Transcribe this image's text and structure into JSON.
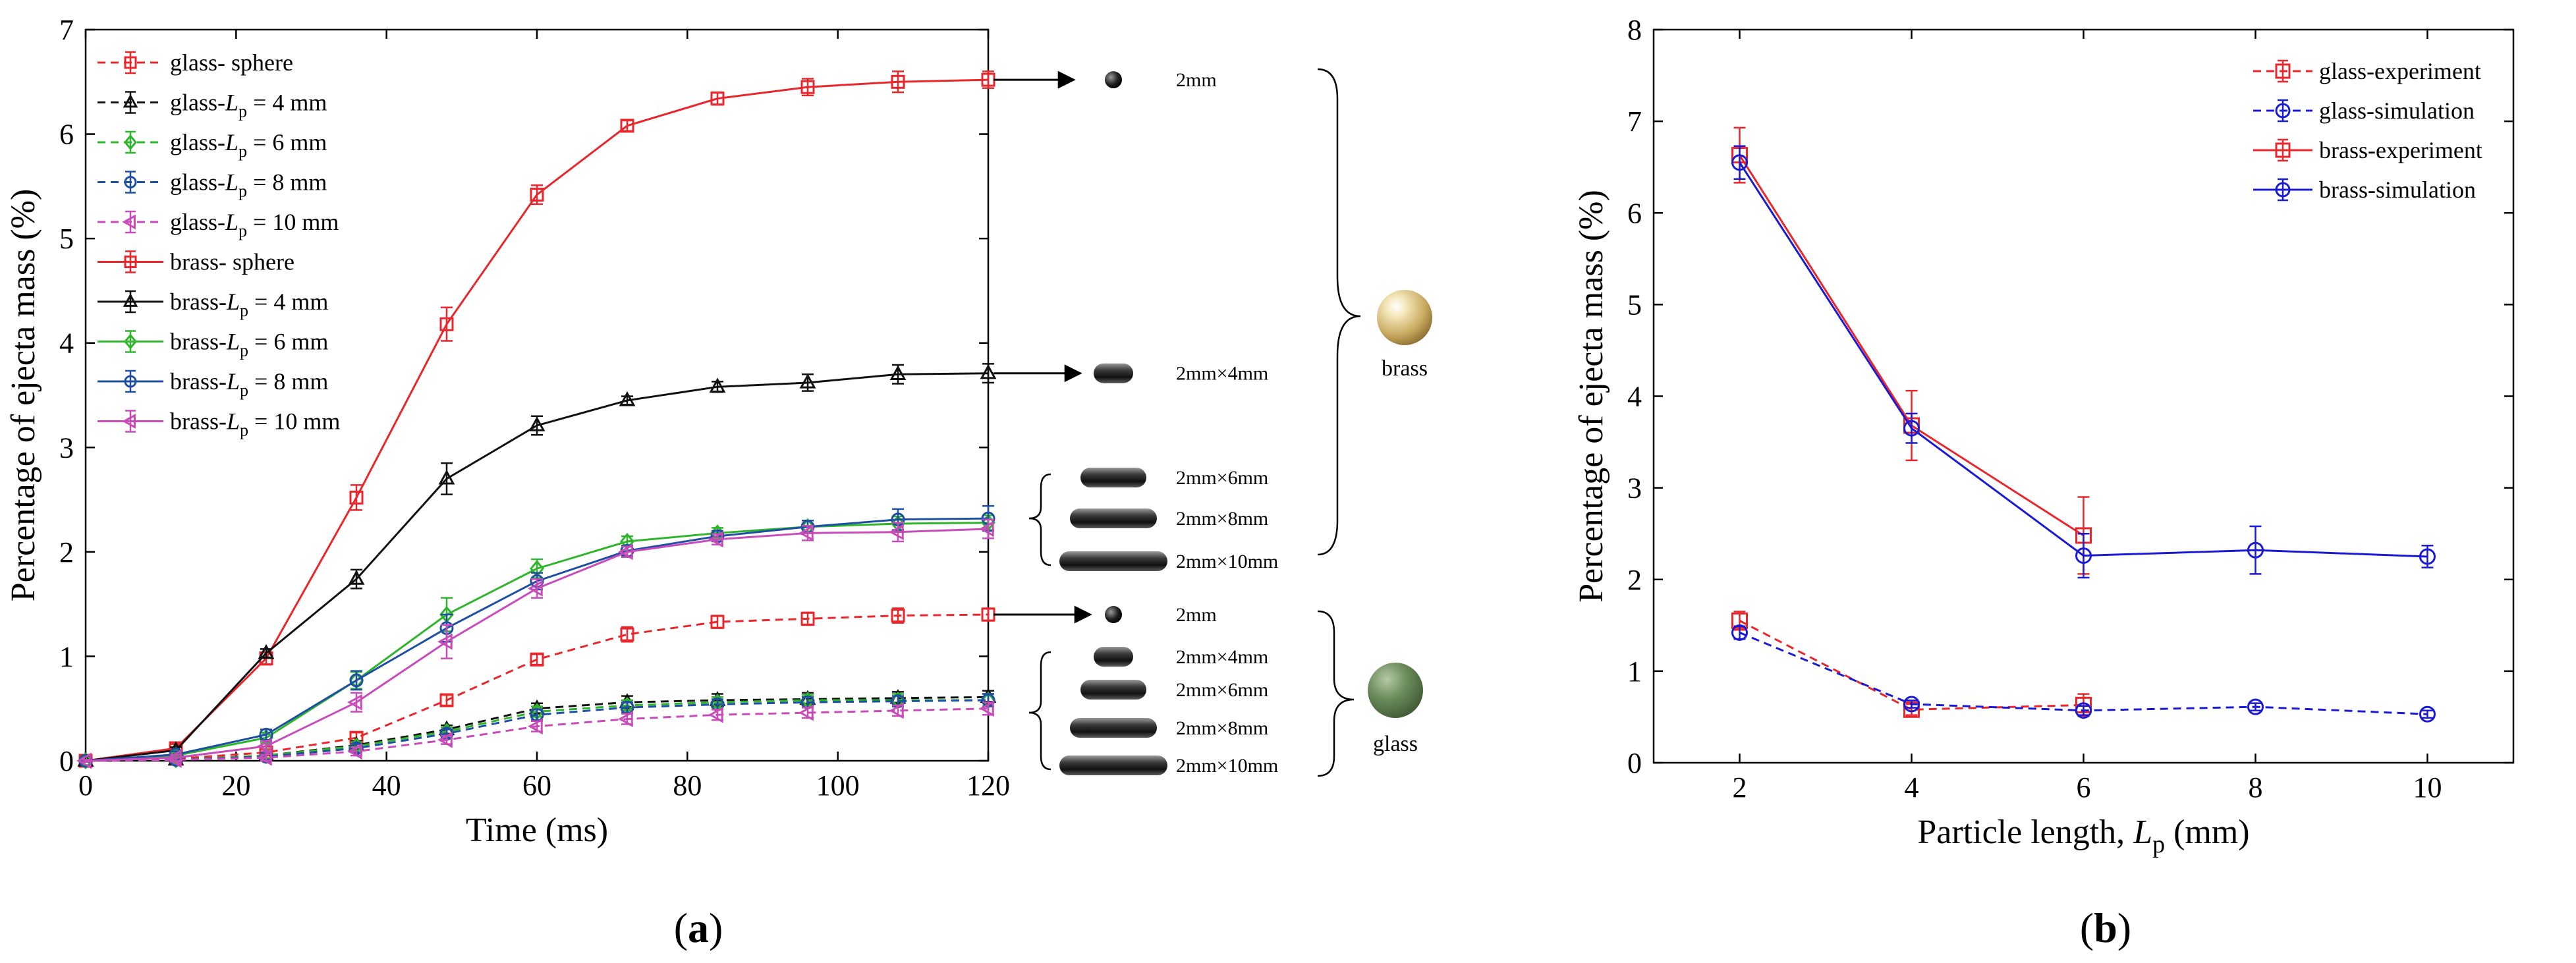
{
  "chart_data": [
    {
      "type": "line",
      "panel_label": "a",
      "xlabel": "Time (ms)",
      "ylabel": "Percentage of ejecta mass (%)",
      "xlim": [
        0,
        120
      ],
      "ylim": [
        0,
        7
      ],
      "xticks": [
        0,
        20,
        40,
        60,
        80,
        100,
        120
      ],
      "yticks": [
        0,
        1,
        2,
        3,
        4,
        5,
        6,
        7
      ],
      "x": [
        0,
        12,
        24,
        36,
        48,
        60,
        72,
        84,
        96,
        108,
        120
      ],
      "legend_position": "top-left",
      "series": [
        {
          "name": "glass- sphere",
          "sub": "",
          "suffix": "",
          "color": "#e8262b",
          "dash": true,
          "marker": "square",
          "values": [
            0,
            0.02,
            0.08,
            0.22,
            0.58,
            0.97,
            1.21,
            1.33,
            1.36,
            1.39,
            1.4
          ],
          "errors": [
            0.01,
            0.02,
            0.03,
            0.05,
            0.05,
            0.05,
            0.07,
            0.06,
            0.06,
            0.07,
            0.06
          ]
        },
        {
          "name": "glass-L",
          "sub": "p",
          "suffix": "=  4 mm",
          "color": "#111111",
          "dash": true,
          "marker": "triangle",
          "values": [
            0,
            0.01,
            0.05,
            0.15,
            0.3,
            0.5,
            0.56,
            0.58,
            0.59,
            0.6,
            0.61
          ],
          "errors": [
            0.01,
            0.02,
            0.03,
            0.04,
            0.04,
            0.05,
            0.06,
            0.06,
            0.06,
            0.06,
            0.06
          ]
        },
        {
          "name": "glass-L",
          "sub": "p",
          "suffix": "=  6 mm",
          "color": "#2fb52b",
          "dash": true,
          "marker": "diamond",
          "values": [
            0,
            0.01,
            0.05,
            0.14,
            0.28,
            0.47,
            0.53,
            0.56,
            0.58,
            0.58,
            0.58
          ],
          "errors": [
            0.01,
            0.02,
            0.03,
            0.04,
            0.04,
            0.05,
            0.05,
            0.05,
            0.05,
            0.06,
            0.06
          ]
        },
        {
          "name": "glass-L",
          "sub": "p",
          "suffix": "=  8 mm",
          "color": "#1f4fa3",
          "dash": true,
          "marker": "circle",
          "values": [
            0,
            0.01,
            0.04,
            0.12,
            0.26,
            0.44,
            0.51,
            0.54,
            0.56,
            0.57,
            0.58
          ],
          "errors": [
            0.01,
            0.02,
            0.03,
            0.04,
            0.04,
            0.05,
            0.05,
            0.05,
            0.05,
            0.05,
            0.06
          ]
        },
        {
          "name": "glass-L",
          "sub": "p",
          "suffix": "= 10 mm",
          "color": "#c74bb8",
          "dash": true,
          "marker": "ltriangle",
          "values": [
            0,
            0.01,
            0.03,
            0.09,
            0.2,
            0.33,
            0.4,
            0.44,
            0.46,
            0.48,
            0.5
          ],
          "errors": [
            0.01,
            0.02,
            0.03,
            0.04,
            0.04,
            0.05,
            0.05,
            0.05,
            0.05,
            0.05,
            0.06
          ]
        },
        {
          "name": "brass- sphere",
          "sub": "",
          "suffix": "",
          "color": "#e8262b",
          "dash": false,
          "marker": "square",
          "values": [
            0,
            0.12,
            0.98,
            2.52,
            4.18,
            5.42,
            6.08,
            6.34,
            6.45,
            6.5,
            6.52
          ],
          "errors": [
            0.01,
            0.04,
            0.06,
            0.12,
            0.16,
            0.09,
            0.05,
            0.06,
            0.08,
            0.1,
            0.08
          ]
        },
        {
          "name": "brass-L",
          "sub": "p",
          "suffix": "=  4 mm",
          "color": "#111111",
          "dash": false,
          "marker": "triangle",
          "values": [
            0,
            0.1,
            1.03,
            1.74,
            2.7,
            3.21,
            3.45,
            3.58,
            3.62,
            3.7,
            3.71
          ],
          "errors": [
            0.01,
            0.03,
            0.04,
            0.09,
            0.15,
            0.09,
            0.04,
            0.05,
            0.08,
            0.09,
            0.09
          ]
        },
        {
          "name": "brass-L",
          "sub": "p",
          "suffix": "=  6 mm",
          "color": "#2fb52b",
          "dash": false,
          "marker": "diamond",
          "values": [
            0,
            0.05,
            0.22,
            0.77,
            1.4,
            1.84,
            2.1,
            2.18,
            2.24,
            2.27,
            2.28
          ],
          "errors": [
            0.01,
            0.03,
            0.05,
            0.08,
            0.16,
            0.09,
            0.05,
            0.05,
            0.06,
            0.07,
            0.07
          ]
        },
        {
          "name": "brass-L",
          "sub": "p",
          "suffix": "=  8 mm",
          "color": "#1f4fa3",
          "dash": false,
          "marker": "circle",
          "values": [
            0,
            0.06,
            0.25,
            0.77,
            1.27,
            1.72,
            2.01,
            2.15,
            2.24,
            2.31,
            2.32
          ],
          "errors": [
            0.01,
            0.03,
            0.05,
            0.09,
            0.13,
            0.08,
            0.05,
            0.05,
            0.06,
            0.1,
            0.12
          ]
        },
        {
          "name": "brass-L",
          "sub": "p",
          "suffix": "= 10 mm",
          "color": "#c74bb8",
          "dash": false,
          "marker": "ltriangle",
          "values": [
            0,
            0.03,
            0.14,
            0.56,
            1.14,
            1.65,
            2.0,
            2.12,
            2.18,
            2.19,
            2.22
          ],
          "errors": [
            0.01,
            0.03,
            0.05,
            0.09,
            0.16,
            0.09,
            0.05,
            0.05,
            0.07,
            0.09,
            0.09
          ]
        }
      ],
      "annotations": {
        "brass_sizes": [
          "2mm",
          "2mm×4mm",
          "2mm×6mm",
          "2mm×8mm",
          "2mm×10mm"
        ],
        "glass_sizes": [
          "2mm",
          "2mm×4mm",
          "2mm×6mm",
          "2mm×8mm",
          "2mm×10mm"
        ],
        "brass_label": "brass",
        "glass_label": "glass"
      }
    },
    {
      "type": "line",
      "panel_label": "b",
      "xlabel": "Particle length, ",
      "xlabel_var": "L",
      "xlabel_sub": "p",
      "xlabel_unit": " (mm)",
      "ylabel": "Percentage of ejecta mass (%)",
      "xlim": [
        1,
        11
      ],
      "ylim": [
        0,
        8
      ],
      "xticks": [
        2,
        4,
        6,
        8,
        10
      ],
      "yticks": [
        0,
        1,
        2,
        3,
        4,
        5,
        6,
        7,
        8
      ],
      "legend_position": "top-right",
      "series": [
        {
          "name": "glass-experiment",
          "color": "#e8262b",
          "dash": true,
          "marker": "square",
          "x": [
            2,
            4,
            6
          ],
          "values": [
            1.55,
            0.58,
            0.63
          ],
          "errors": [
            0.1,
            0.06,
            0.12
          ]
        },
        {
          "name": "glass-simulation",
          "color": "#1a1ad6",
          "dash": true,
          "marker": "circle",
          "x": [
            2,
            4,
            6,
            8,
            10
          ],
          "values": [
            1.42,
            0.64,
            0.57,
            0.61,
            0.53
          ],
          "errors": [
            0.07,
            0.04,
            0.05,
            0.04,
            0.04
          ]
        },
        {
          "name": "brass-experiment",
          "color": "#e8262b",
          "dash": false,
          "marker": "square",
          "x": [
            2,
            4,
            6
          ],
          "values": [
            6.63,
            3.68,
            2.48
          ],
          "errors": [
            0.3,
            0.38,
            0.42
          ]
        },
        {
          "name": "brass-simulation",
          "color": "#1a1ad6",
          "dash": false,
          "marker": "circle",
          "x": [
            2,
            4,
            6,
            8,
            10
          ],
          "values": [
            6.55,
            3.65,
            2.26,
            2.32,
            2.25
          ],
          "errors": [
            0.18,
            0.16,
            0.24,
            0.26,
            0.12
          ]
        }
      ]
    }
  ]
}
